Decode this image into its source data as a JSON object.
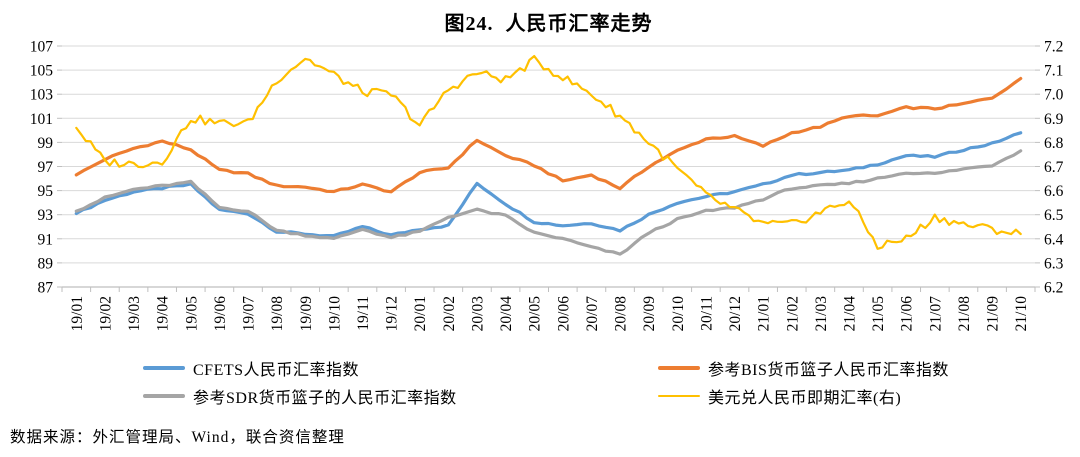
{
  "page": {
    "title": "图24.  人民币汇率走势",
    "source_note": "数据来源：外汇管理局、Wind，联合资信整理"
  },
  "chart_data": {
    "type": "line",
    "title": "图24. 人民币汇率走势",
    "grid": true,
    "legend_position": "bottom",
    "categories": [
      "19/01",
      "19/02",
      "19/03",
      "19/04",
      "19/05",
      "19/06",
      "19/07",
      "19/08",
      "19/09",
      "19/10",
      "19/11",
      "19/12",
      "20/01",
      "20/02",
      "20/03",
      "20/04",
      "20/05",
      "20/06",
      "20/07",
      "20/08",
      "20/09",
      "20/10",
      "20/11",
      "20/12",
      "21/01",
      "21/02",
      "21/03",
      "21/04",
      "21/05",
      "21/06",
      "21/07",
      "21/08",
      "21/09",
      "21/10"
    ],
    "left_axis": {
      "min": 87,
      "max": 107,
      "step": 2,
      "ticks": [
        "107",
        "105",
        "103",
        "101",
        "99",
        "97",
        "95",
        "93",
        "91",
        "89",
        "87"
      ]
    },
    "right_axis": {
      "min": 6.2,
      "max": 7.2,
      "step": 0.1,
      "ticks": [
        "7.2",
        "7.1",
        "7.0",
        "6.9",
        "6.8",
        "6.7",
        "6.6",
        "6.5",
        "6.4",
        "6.3",
        "6.2"
      ]
    },
    "series": [
      {
        "name": "CFETS人民币汇率指数",
        "axis": "left",
        "color": "#5B9BD5",
        "values": [
          93.1,
          94.2,
          94.9,
          95.2,
          95.5,
          93.4,
          93.1,
          91.6,
          91.4,
          91.2,
          92.0,
          91.3,
          91.8,
          92.1,
          95.6,
          93.9,
          92.4,
          92.1,
          92.3,
          91.7,
          93.0,
          94.0,
          94.5,
          94.9,
          95.5,
          96.3,
          96.5,
          96.7,
          97.2,
          97.9,
          97.8,
          98.4,
          98.9,
          99.8
        ]
      },
      {
        "name": "参考BIS货币篮子人民币汇率指数",
        "axis": "left",
        "color": "#ED7D31",
        "values": [
          96.3,
          97.6,
          98.5,
          99.1,
          98.4,
          96.7,
          96.4,
          95.4,
          95.3,
          94.9,
          95.5,
          94.9,
          96.5,
          96.9,
          99.2,
          97.9,
          97.1,
          95.8,
          96.3,
          95.2,
          97.0,
          98.3,
          99.3,
          99.5,
          98.7,
          99.8,
          100.3,
          101.2,
          101.2,
          101.9,
          101.8,
          102.2,
          102.7,
          104.3
        ]
      },
      {
        "name": "参考SDR货币篮子的人民币汇率指数",
        "axis": "left",
        "color": "#A5A5A5",
        "values": [
          93.3,
          94.4,
          95.1,
          95.4,
          95.7,
          93.6,
          93.3,
          91.7,
          91.3,
          91.0,
          91.8,
          91.1,
          91.6,
          92.8,
          93.4,
          92.9,
          91.5,
          91.0,
          90.3,
          89.7,
          91.5,
          92.6,
          93.3,
          93.6,
          94.3,
          95.2,
          95.4,
          95.6,
          96.0,
          96.5,
          96.4,
          96.8,
          97.1,
          98.3
        ]
      },
      {
        "name": "美元兑人民币即期汇率(右)",
        "axis": "right",
        "color": "#FFC000",
        "values": [
          6.86,
          6.72,
          6.71,
          6.72,
          6.9,
          6.88,
          6.88,
          7.06,
          7.15,
          7.08,
          7.01,
          7.0,
          6.87,
          7.02,
          7.09,
          7.06,
          7.14,
          7.07,
          7.0,
          6.91,
          6.8,
          6.69,
          6.58,
          6.52,
          6.46,
          6.46,
          6.51,
          6.56,
          6.37,
          6.4,
          6.49,
          6.46,
          6.44,
          6.42
        ]
      }
    ],
    "style": {
      "gridline_color": "#D9D9D9",
      "axis_color": "#BFBFBF",
      "text_color": "#000000"
    }
  }
}
